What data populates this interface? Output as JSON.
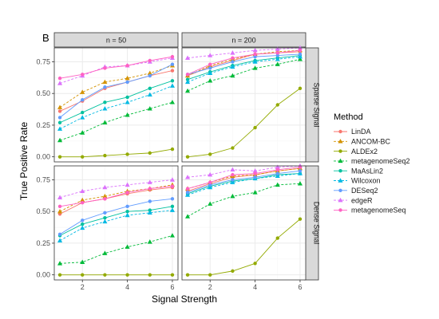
{
  "figure_letter": "B",
  "colors": {
    "strip_fill": "#d9d9d9",
    "panel_border": "#333333",
    "grid_major": "#ebebeb",
    "grid_minor": "#f5f5f5"
  },
  "methods": [
    {
      "name": "LinDA",
      "color": "#F8766D",
      "marker": "circle",
      "dashed": false
    },
    {
      "name": "ANCOM-BC",
      "color": "#D39200",
      "marker": "triangle",
      "dashed": true
    },
    {
      "name": "ALDEx2",
      "color": "#93AA00",
      "marker": "circle",
      "dashed": false
    },
    {
      "name": "metagenomeSeq2",
      "color": "#00BA38",
      "marker": "triangle",
      "dashed": true
    },
    {
      "name": "MaAsLin2",
      "color": "#00C19F",
      "marker": "circle",
      "dashed": false
    },
    {
      "name": "Wilcoxon",
      "color": "#00B9E3",
      "marker": "triangle",
      "dashed": true
    },
    {
      "name": "DESeq2",
      "color": "#619CFF",
      "marker": "circle",
      "dashed": false
    },
    {
      "name": "edgeR",
      "color": "#DB72FB",
      "marker": "triangle",
      "dashed": true
    },
    {
      "name": "metagenomeSeq",
      "color": "#FF61C3",
      "marker": "circle",
      "dashed": false
    }
  ],
  "chart_data": {
    "type": "line",
    "xlabel": "Signal Strength",
    "ylabel": "True Positive Rate",
    "legend_title": "Method",
    "legend_position": "right",
    "grid": true,
    "xlim": [
      0.75,
      6.25
    ],
    "ylim": [
      -0.04,
      0.86
    ],
    "x_ticks": [
      2,
      4,
      6
    ],
    "x_tick_labels": [
      "2",
      "4",
      "6"
    ],
    "y_ticks": [
      0.0,
      0.25,
      0.5,
      0.75
    ],
    "y_tick_labels": [
      "0.00",
      "0.25",
      "0.50",
      "0.75"
    ],
    "col_labels": [
      "n = 50",
      "n = 200"
    ],
    "row_labels": [
      "Sparse Signal",
      "Dense Signal"
    ],
    "x": [
      1,
      2,
      3,
      4,
      5,
      6
    ],
    "panels": [
      {
        "col": "n = 50",
        "row": "Sparse Signal",
        "series": [
          {
            "name": "LinDA",
            "values": [
              0.36,
              0.44,
              0.54,
              0.59,
              0.64,
              0.68
            ]
          },
          {
            "name": "ANCOM-BC",
            "values": [
              0.39,
              0.51,
              0.59,
              0.62,
              0.66,
              0.72
            ]
          },
          {
            "name": "ALDEx2",
            "values": [
              0.0,
              0.0,
              0.01,
              0.02,
              0.03,
              0.06
            ]
          },
          {
            "name": "metagenomeSeq2",
            "values": [
              0.13,
              0.19,
              0.27,
              0.33,
              0.38,
              0.43
            ]
          },
          {
            "name": "MaAsLin2",
            "values": [
              0.27,
              0.35,
              0.43,
              0.47,
              0.54,
              0.6
            ]
          },
          {
            "name": "Wilcoxon",
            "values": [
              0.22,
              0.31,
              0.38,
              0.43,
              0.49,
              0.56
            ]
          },
          {
            "name": "DESeq2",
            "values": [
              0.31,
              0.45,
              0.55,
              0.59,
              0.64,
              0.73
            ]
          },
          {
            "name": "edgeR",
            "values": [
              0.58,
              0.64,
              0.71,
              0.72,
              0.75,
              0.78
            ]
          },
          {
            "name": "metagenomeSeq",
            "values": [
              0.62,
              0.65,
              0.7,
              0.72,
              0.76,
              0.79
            ]
          }
        ]
      },
      {
        "col": "n = 200",
        "row": "Sparse Signal",
        "series": [
          {
            "name": "LinDA",
            "values": [
              0.64,
              0.71,
              0.76,
              0.81,
              0.82,
              0.83
            ]
          },
          {
            "name": "ANCOM-BC",
            "values": [
              0.64,
              0.72,
              0.77,
              0.81,
              0.83,
              0.84
            ]
          },
          {
            "name": "ALDEx2",
            "values": [
              0.0,
              0.02,
              0.07,
              0.23,
              0.41,
              0.54
            ]
          },
          {
            "name": "metagenomeSeq2",
            "values": [
              0.52,
              0.6,
              0.64,
              0.7,
              0.73,
              0.77
            ]
          },
          {
            "name": "MaAsLin2",
            "values": [
              0.61,
              0.67,
              0.72,
              0.76,
              0.78,
              0.8
            ]
          },
          {
            "name": "Wilcoxon",
            "values": [
              0.59,
              0.66,
              0.71,
              0.75,
              0.77,
              0.79
            ]
          },
          {
            "name": "DESeq2",
            "values": [
              0.65,
              0.7,
              0.75,
              0.79,
              0.8,
              0.81
            ]
          },
          {
            "name": "edgeR",
            "values": [
              0.78,
              0.8,
              0.82,
              0.84,
              0.85,
              0.86
            ]
          },
          {
            "name": "metagenomeSeq",
            "values": [
              0.65,
              0.73,
              0.78,
              0.81,
              0.82,
              0.84
            ]
          }
        ]
      },
      {
        "col": "n = 50",
        "row": "Dense Signal",
        "series": [
          {
            "name": "LinDA",
            "values": [
              0.48,
              0.57,
              0.6,
              0.64,
              0.67,
              0.69
            ]
          },
          {
            "name": "ANCOM-BC",
            "values": [
              0.5,
              0.59,
              0.62,
              0.66,
              0.68,
              0.71
            ]
          },
          {
            "name": "ALDEx2",
            "values": [
              0.0,
              0.0,
              0.0,
              0.0,
              0.0,
              0.0
            ]
          },
          {
            "name": "metagenomeSeq2",
            "values": [
              0.09,
              0.1,
              0.17,
              0.22,
              0.26,
              0.31
            ]
          },
          {
            "name": "MaAsLin2",
            "values": [
              0.31,
              0.4,
              0.45,
              0.5,
              0.51,
              0.54
            ]
          },
          {
            "name": "Wilcoxon",
            "values": [
              0.27,
              0.37,
              0.42,
              0.47,
              0.49,
              0.51
            ]
          },
          {
            "name": "DESeq2",
            "values": [
              0.32,
              0.43,
              0.49,
              0.54,
              0.58,
              0.6
            ]
          },
          {
            "name": "edgeR",
            "values": [
              0.61,
              0.66,
              0.69,
              0.71,
              0.73,
              0.75
            ]
          },
          {
            "name": "metagenomeSeq",
            "values": [
              0.54,
              0.57,
              0.6,
              0.65,
              0.68,
              0.7
            ]
          }
        ]
      },
      {
        "col": "n = 200",
        "row": "Dense Signal",
        "series": [
          {
            "name": "LinDA",
            "values": [
              0.66,
              0.72,
              0.77,
              0.79,
              0.82,
              0.84
            ]
          },
          {
            "name": "ANCOM-BC",
            "values": [
              0.68,
              0.73,
              0.78,
              0.79,
              0.82,
              0.84
            ]
          },
          {
            "name": "ALDEx2",
            "values": [
              0.0,
              0.0,
              0.03,
              0.09,
              0.29,
              0.44
            ]
          },
          {
            "name": "metagenomeSeq2",
            "values": [
              0.46,
              0.56,
              0.62,
              0.65,
              0.71,
              0.72
            ]
          },
          {
            "name": "MaAsLin2",
            "values": [
              0.64,
              0.7,
              0.74,
              0.76,
              0.79,
              0.8
            ]
          },
          {
            "name": "Wilcoxon",
            "values": [
              0.63,
              0.69,
              0.73,
              0.76,
              0.78,
              0.8
            ]
          },
          {
            "name": "DESeq2",
            "values": [
              0.65,
              0.71,
              0.75,
              0.77,
              0.8,
              0.82
            ]
          },
          {
            "name": "edgeR",
            "values": [
              0.77,
              0.79,
              0.83,
              0.82,
              0.85,
              0.86
            ]
          },
          {
            "name": "metagenomeSeq",
            "values": [
              0.68,
              0.73,
              0.79,
              0.8,
              0.83,
              0.85
            ]
          }
        ]
      }
    ]
  }
}
